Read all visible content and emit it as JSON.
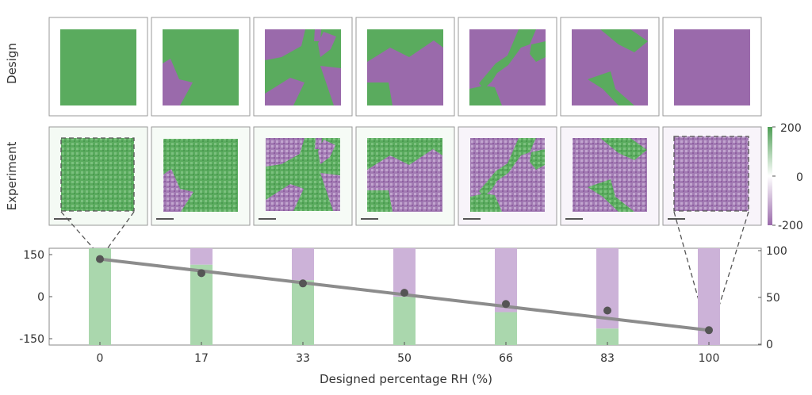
{
  "row_labels": {
    "design": "Design",
    "experiment": "Experiment"
  },
  "colorbar": {
    "ticks": [
      "200",
      "0",
      "-200"
    ],
    "top_color": "#4e9e55",
    "bottom_color": "#9a6aab"
  },
  "colors": {
    "green": "#5aab5e",
    "purple": "#9a6aab",
    "bar_green": "#aad7ad",
    "bar_purple": "#ccb2d8",
    "line": "#8c8c8c",
    "marker": "#555555"
  },
  "chart_data": {
    "type": "bar",
    "xlabel": "Designed percentage RH (%)",
    "categories": [
      "0",
      "17",
      "33",
      "50",
      "66",
      "83",
      "100"
    ],
    "left_axis": {
      "ticks": [
        "150",
        "0",
        "-150"
      ],
      "ylim": [
        -150,
        150
      ]
    },
    "right_axis": {
      "ticks": [
        "100",
        "50",
        "0"
      ],
      "ylim": [
        0,
        100
      ]
    },
    "bars": {
      "green_share_percent": [
        100,
        83,
        67,
        50,
        34,
        17,
        0
      ],
      "purple_share_percent": [
        0,
        17,
        33,
        50,
        66,
        83,
        100
      ]
    },
    "line_values": [
      91,
      76,
      65,
      55,
      43,
      36,
      15
    ]
  },
  "design_panels": [
    {
      "label": "0"
    },
    {
      "label": "17"
    },
    {
      "label": "33"
    },
    {
      "label": "50"
    },
    {
      "label": "66"
    },
    {
      "label": "83"
    },
    {
      "label": "100"
    }
  ]
}
